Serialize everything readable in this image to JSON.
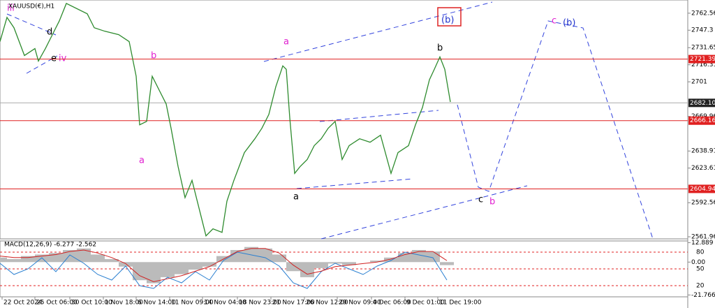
{
  "chart_data": {
    "type": "line",
    "title": "XAUUSD(€),H1",
    "x": [
      0,
      2,
      4,
      7,
      10,
      11,
      13,
      15,
      17,
      19,
      25,
      27,
      30,
      34,
      37,
      39,
      40,
      42,
      43.6,
      45.6,
      47.6,
      49,
      51,
      53,
      55,
      57,
      59,
      61,
      63.6,
      65,
      67,
      70,
      73,
      75,
      77,
      79,
      81,
      82,
      83,
      84.4,
      86,
      88,
      90,
      92,
      94,
      96,
      98,
      100,
      103,
      106,
      109,
      112,
      114,
      117,
      119,
      121,
      123,
      124.4,
      126,
      127.4,
      129
    ],
    "series": [
      {
        "name": "XAUUSD",
        "color": "#2e8b2e",
        "values": [
          2737.1,
          2758.8,
          2749.5,
          2724.6,
          2730.8,
          2719.6,
          2730.8,
          2743.3,
          2755.7,
          2771.3,
          2762.0,
          2749.5,
          2746.4,
          2743.3,
          2737.1,
          2706.0,
          2662.4,
          2665.5,
          2706.0,
          2693.5,
          2681.1,
          2659.3,
          2625.1,
          2597.1,
          2612.6,
          2587.7,
          2562.8,
          2569.1,
          2565.9,
          2593.9,
          2612.6,
          2637.5,
          2649.9,
          2659.3,
          2671.7,
          2696.6,
          2715.3,
          2712.2,
          2668.6,
          2618.8,
          2625.1,
          2631.3,
          2643.7,
          2649.9,
          2659.3,
          2665.5,
          2631.3,
          2643.7,
          2649.9,
          2646.8,
          2653.1,
          2618.8,
          2637.5,
          2643.7,
          2662.4,
          2677.9,
          2702.8,
          2712.2,
          2723.4,
          2712.2,
          2682.9
        ]
      }
    ],
    "xlim": [
      0,
      197
    ],
    "xticks": [
      {
        "value": 0.6,
        "label": "22 Oct 2024"
      },
      {
        "value": 10,
        "label": "25 Oct 06:00"
      },
      {
        "value": 20,
        "label": "30 Oct 10:00"
      },
      {
        "value": 29.6,
        "label": "1 Nov 18:00"
      },
      {
        "value": 39,
        "label": "6 Nov 14:00"
      },
      {
        "value": 48.6,
        "label": "11 Nov 09:00"
      },
      {
        "value": 58,
        "label": "14 Nov 04:00"
      },
      {
        "value": 68,
        "label": "18 Nov 23:00"
      },
      {
        "value": 77.6,
        "label": "21 Nov 17:00"
      },
      {
        "value": 87.2,
        "label": "26 Nov 12:00"
      },
      {
        "value": 96.6,
        "label": "29 Nov 09:00"
      },
      {
        "value": 106.4,
        "label": "4 Dec 06:00"
      },
      {
        "value": 116,
        "label": "9 Dec 01:00"
      },
      {
        "value": 125.4,
        "label": "11 Dec 19:00"
      }
    ],
    "ylim": [
      2560.1,
      2774.4
    ],
    "yticks": [
      2762.56,
      2747.3,
      2731.65,
      2716.31,
      2701.0,
      2669.96,
      2638.91,
      2623.61,
      2592.56,
      2561.96
    ],
    "levels": [
      {
        "value": 2721.39,
        "label": "2721.39"
      },
      {
        "value": 2666.16,
        "label": "2666.16"
      },
      {
        "value": 2604.94,
        "label": "2604.94"
      }
    ],
    "current_price": {
      "value": 2682.1,
      "label": "2682.10"
    },
    "annotations": [
      "iii",
      "d",
      "e",
      "iv",
      "b",
      "a",
      "a",
      "a",
      "b",
      "c",
      "b",
      "(b)",
      "c",
      "(b)"
    ],
    "indicator": {
      "label": "MACD(12,26,9) -6.277 -2.562",
      "x": [
        0,
        4,
        8,
        12,
        16,
        20,
        24,
        28,
        32,
        36,
        40,
        44,
        48,
        52,
        56,
        60,
        64,
        68,
        72,
        76,
        80,
        84,
        88,
        92,
        96,
        100,
        104,
        108,
        112,
        116,
        120,
        124,
        128
      ],
      "histogram": [
        3,
        2,
        4,
        5,
        6,
        8,
        9,
        5,
        2,
        -3,
        -12,
        -14,
        -10,
        -8,
        -5,
        -3,
        4,
        8,
        10,
        9,
        5,
        -6,
        -10,
        -4,
        -1,
        -2,
        0,
        1,
        3,
        6,
        8,
        7,
        -2
      ],
      "signal": [
        4,
        3,
        3,
        4,
        5,
        7,
        8,
        6,
        3,
        -1,
        -9,
        -13,
        -11,
        -9,
        -6,
        -3,
        2,
        7,
        9,
        9,
        6,
        -2,
        -8,
        -6,
        -3,
        -2,
        -1,
        0,
        2,
        5,
        7,
        7,
        1
      ],
      "ylim": [
        -23,
        14
      ],
      "yticks": [
        12.889,
        {
          "value": 0,
          "label": "0.00"
        },
        -21.766
      ],
      "oscillator": [
        60,
        40,
        50,
        70,
        45,
        75,
        60,
        40,
        30,
        55,
        20,
        15,
        35,
        25,
        45,
        30,
        65,
        80,
        75,
        70,
        55,
        25,
        15,
        45,
        60,
        50,
        40,
        55,
        65,
        80,
        75,
        70,
        30
      ],
      "y2lim": [
        0,
        100
      ],
      "y2ticks": [
        80,
        50,
        20
      ]
    }
  }
}
